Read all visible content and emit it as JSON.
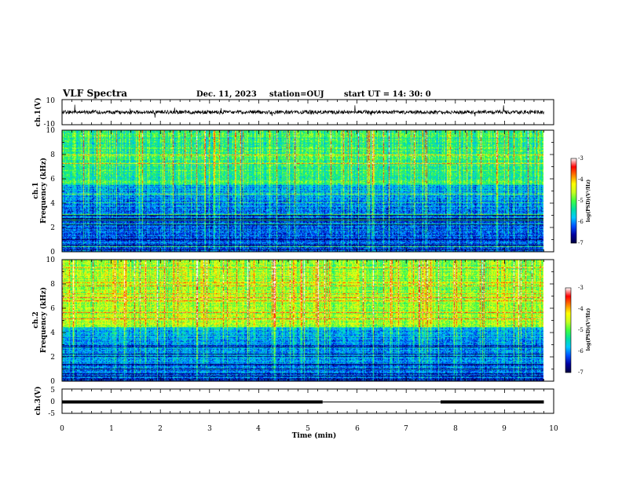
{
  "header": {
    "title": "VLF Spectra",
    "date": "Dec. 11, 2023",
    "station": "station=OUJ",
    "start_time": "start  UT =   14: 30: 0"
  },
  "colors": {
    "colormap": [
      "#000040",
      "#0000a0",
      "#0050ff",
      "#00c8ff",
      "#00e0a0",
      "#40ff40",
      "#c8ff20",
      "#ffff00",
      "#ff8000",
      "#ff0000",
      "#ffffff"
    ]
  },
  "chart_data": [
    {
      "type": "line",
      "id": "ch1_waveform",
      "ylabel": "ch.1(V)",
      "ylim": [
        -10,
        10
      ],
      "yticks": [
        "10",
        "-10"
      ],
      "xlim": [
        0,
        10
      ],
      "baseline_value": 0,
      "noise_amplitude": 1.5
    },
    {
      "type": "heatmap",
      "id": "ch1_spectrogram",
      "ylabel_line1": "ch.1",
      "ylabel_line2": "Frequency (kHz)",
      "ylim": [
        0,
        10
      ],
      "yticks": [
        "0",
        "2",
        "4",
        "6",
        "8",
        "10"
      ],
      "xlim": [
        0,
        9.8
      ],
      "colorbar": {
        "label": "log(PSD)(V²/Hz)",
        "range": [
          -7,
          -3
        ],
        "ticks": [
          "-3",
          "-4",
          "-5",
          "-6",
          "-7"
        ]
      },
      "level": {
        "high_band_mean": -5.2,
        "low_band_mean": -6.3,
        "band_edge_khz": 5.5
      }
    },
    {
      "type": "heatmap",
      "id": "ch2_spectrogram",
      "ylabel_line1": "ch.2",
      "ylabel_line2": "Frequency (kHz)",
      "ylim": [
        0,
        10
      ],
      "yticks": [
        "0",
        "2",
        "4",
        "6",
        "8",
        "10"
      ],
      "xlim": [
        0,
        9.8
      ],
      "colorbar": {
        "label": "log(PSD)(V²/Hz)",
        "range": [
          -7,
          -3
        ],
        "ticks": [
          "-3",
          "-4",
          "-5",
          "-6",
          "-7"
        ]
      },
      "level": {
        "high_band_mean": -4.7,
        "low_band_mean": -6.2,
        "band_edge_khz": 4.5
      }
    },
    {
      "type": "line",
      "id": "ch3_signal",
      "ylabel": "ch.3(V)",
      "ylim": [
        -5,
        5
      ],
      "yticks": [
        "5",
        "0",
        "-5"
      ],
      "xlim": [
        0,
        10
      ],
      "segments": [
        {
          "x0": 0,
          "x1": 5.3,
          "y": 0,
          "thickness": "thick"
        },
        {
          "x0": 5.3,
          "x1": 7.7,
          "y": 0,
          "thickness": "thin"
        },
        {
          "x0": 7.7,
          "x1": 9.8,
          "y": 0,
          "thickness": "thick"
        }
      ]
    }
  ],
  "x_axis": {
    "label": "Time (min)",
    "range": [
      0,
      10
    ],
    "ticks": [
      "0",
      "1",
      "2",
      "3",
      "4",
      "5",
      "6",
      "7",
      "8",
      "9",
      "10"
    ]
  }
}
